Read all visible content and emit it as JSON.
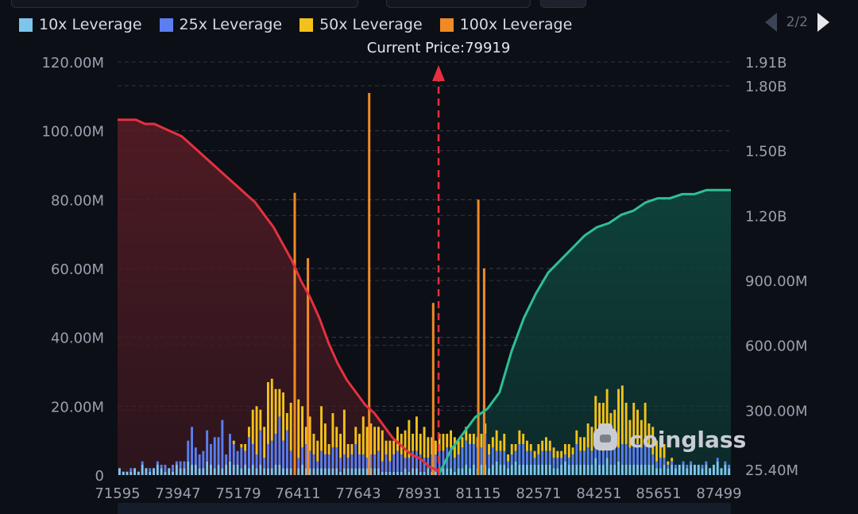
{
  "legend": [
    {
      "label": "10x Leverage",
      "color": "#7cc6ee"
    },
    {
      "label": "25x Leverage",
      "color": "#5b7ef0"
    },
    {
      "label": "50x Leverage",
      "color": "#f2c21a"
    },
    {
      "label": "100x Leverage",
      "color": "#f08a24"
    }
  ],
  "pager": {
    "text": "2/2",
    "prev_icon": "triangle-left-icon",
    "next_icon": "triangle-right-icon"
  },
  "watermark": {
    "text": "coinglass",
    "icon": "coinglass-logo-icon"
  },
  "chart_data": {
    "type": "bar",
    "current_price_label": "Current Price:79919",
    "current_price": 79919,
    "x_tick_labels": [
      "71595",
      "73947",
      "75179",
      "76411",
      "77643",
      "78931",
      "81115",
      "82571",
      "84251",
      "85651",
      "87499"
    ],
    "y_left_ticks": [
      "0",
      "20.00M",
      "40.00M",
      "60.00M",
      "80.00M",
      "100.00M",
      "120.00M"
    ],
    "y_left_range": [
      0,
      120000000
    ],
    "y_right_ticks": [
      "25.40M",
      "300.00M",
      "600.00M",
      "900.00M",
      "1.20B",
      "1.50B",
      "1.80B",
      "1.91B"
    ],
    "y_right_values": [
      25400000,
      300000000,
      600000000,
      900000000,
      1200000000,
      1500000000,
      1800000000,
      1910000000
    ],
    "grid": true,
    "colors": {
      "long_cumulative": "#e5303f",
      "short_cumulative": "#2fbf94",
      "current_price_line": "#e5303f"
    },
    "series": [
      {
        "name": "10x Leverage",
        "color": "#7cc6ee",
        "values": [
          2,
          1,
          1,
          1,
          2,
          1,
          3,
          2,
          1,
          2,
          3,
          2,
          1,
          2,
          1,
          3,
          2,
          2,
          4,
          3,
          3,
          2,
          2,
          4,
          3,
          2,
          3,
          2,
          3,
          4,
          3,
          3,
          2,
          3,
          2,
          3,
          2,
          3,
          2,
          2,
          2,
          3,
          3,
          2,
          2,
          2,
          2,
          2,
          3,
          2,
          2,
          2,
          2,
          2,
          2,
          2,
          2,
          2,
          1,
          2,
          2,
          2,
          2,
          2,
          2,
          2,
          2,
          2,
          2,
          1,
          1,
          1,
          1,
          1,
          1,
          2,
          1,
          2,
          2,
          1,
          1,
          2,
          1,
          1,
          1,
          2,
          2,
          2,
          1,
          2,
          2,
          3,
          2,
          3,
          2,
          3,
          3,
          2,
          3,
          4,
          3,
          3,
          2,
          3,
          4,
          3,
          3,
          3,
          3,
          3,
          3,
          3,
          3,
          3,
          2,
          2,
          3,
          4,
          3,
          3,
          3,
          3,
          3,
          3,
          3,
          5,
          3,
          3,
          5,
          3,
          3,
          4,
          3,
          3,
          3,
          3,
          3,
          3,
          3,
          3,
          3,
          2,
          2,
          3,
          2,
          3,
          2,
          3,
          3,
          2,
          3,
          3,
          3,
          2,
          3,
          2,
          3,
          4,
          2,
          3,
          2
        ]
      },
      {
        "name": "25x Leverage",
        "color": "#5b7ef0",
        "values": [
          0,
          0,
          0,
          1,
          0,
          0,
          1,
          0,
          1,
          0,
          1,
          1,
          2,
          0,
          2,
          1,
          2,
          2,
          6,
          11,
          5,
          4,
          5,
          9,
          6,
          9,
          8,
          14,
          3,
          8,
          6,
          4,
          6,
          4,
          9,
          6,
          4,
          10,
          3,
          7,
          8,
          9,
          14,
          8,
          11,
          5,
          5,
          3,
          5,
          7,
          5,
          4,
          2,
          5,
          4,
          4,
          6,
          6,
          4,
          4,
          3,
          4,
          7,
          4,
          4,
          3,
          4,
          4,
          5,
          3,
          5,
          3,
          5,
          6,
          5,
          3,
          4,
          5,
          5,
          5,
          4,
          3,
          5,
          5,
          6,
          5,
          6,
          6,
          4,
          4,
          6,
          7,
          7,
          6,
          6,
          5,
          9,
          4,
          5,
          3,
          4,
          4,
          2,
          3,
          3,
          6,
          6,
          4,
          4,
          2,
          3,
          4,
          4,
          4,
          3,
          3,
          2,
          2,
          2,
          3,
          6,
          4,
          4,
          5,
          4,
          6,
          5,
          4,
          7,
          7,
          6,
          4,
          6,
          6,
          5,
          6,
          6,
          5,
          6,
          5,
          3,
          2,
          3,
          2,
          1,
          1,
          1,
          0,
          1,
          1,
          1,
          0,
          0,
          1,
          1,
          0,
          0,
          1,
          0,
          1,
          1
        ]
      },
      {
        "name": "50x Leverage",
        "color": "#f2c21a",
        "values": [
          0,
          0,
          0,
          0,
          0,
          0,
          0,
          0,
          0,
          0,
          0,
          0,
          0,
          0,
          0,
          0,
          0,
          0,
          0,
          0,
          0,
          0,
          0,
          0,
          0,
          0,
          0,
          0,
          0,
          0,
          1,
          0,
          1,
          2,
          3,
          10,
          14,
          6,
          9,
          18,
          18,
          13,
          8,
          14,
          5,
          14,
          9,
          17,
          12,
          5,
          10,
          6,
          6,
          13,
          9,
          3,
          10,
          6,
          7,
          13,
          4,
          3,
          5,
          6,
          11,
          9,
          9,
          8,
          7,
          9,
          4,
          6,
          4,
          7,
          6,
          8,
          11,
          5,
          10,
          6,
          9,
          6,
          5,
          4,
          5,
          5,
          4,
          5,
          6,
          4,
          3,
          4,
          3,
          3,
          3,
          4,
          3,
          3,
          3,
          6,
          3,
          5,
          2,
          3,
          2,
          4,
          3,
          3,
          2,
          2,
          3,
          3,
          4,
          3,
          3,
          2,
          2,
          3,
          4,
          2,
          4,
          4,
          4,
          7,
          7,
          12,
          13,
          14,
          13,
          8,
          10,
          17,
          17,
          12,
          8,
          12,
          10,
          8,
          12,
          7,
          8,
          6,
          6,
          4,
          1,
          1,
          0,
          0,
          0,
          0,
          0,
          0,
          0,
          0,
          0,
          0,
          0,
          0,
          0,
          0,
          0
        ]
      },
      {
        "name": "100x Leverage",
        "color": "#f08a24",
        "values": [
          0,
          0,
          0,
          0,
          0,
          0,
          0,
          0,
          0,
          0,
          0,
          0,
          0,
          0,
          0,
          0,
          0,
          0,
          0,
          0,
          0,
          0,
          0,
          0,
          0,
          0,
          0,
          0,
          0,
          0,
          0,
          0,
          0,
          0,
          0,
          0,
          0,
          0,
          0,
          0,
          0,
          0,
          0,
          0,
          0,
          0,
          0,
          0,
          0,
          0,
          0,
          0,
          0,
          0,
          0,
          0,
          0,
          0,
          0,
          0,
          0,
          0,
          0,
          0,
          0,
          0,
          0,
          0,
          0,
          0,
          0,
          0,
          0,
          0,
          0,
          0,
          0,
          0,
          0,
          0,
          0,
          0,
          0,
          0,
          0,
          0,
          0,
          0,
          0,
          0,
          0,
          0,
          0,
          0,
          0,
          0,
          0,
          0,
          0,
          0,
          0,
          0,
          0,
          0,
          0,
          0,
          0,
          0,
          0,
          0,
          0,
          0,
          0,
          0,
          0,
          0,
          0,
          0,
          0,
          0,
          0,
          0,
          0,
          0,
          0,
          0,
          0,
          0,
          0,
          0,
          0,
          0,
          0,
          0,
          0,
          0,
          0,
          0,
          0,
          0,
          0,
          0,
          0,
          0,
          0,
          0,
          0,
          0,
          0,
          0,
          0,
          0,
          0,
          0,
          0,
          0,
          0,
          0,
          0,
          0,
          0
        ]
      },
      {
        "name": "total",
        "values": [
          2,
          1,
          1,
          2,
          2,
          1,
          4,
          2,
          2,
          2,
          4,
          3,
          3,
          2,
          3,
          4,
          4,
          4,
          10,
          14,
          8,
          6,
          7,
          13,
          9,
          11,
          11,
          16,
          6,
          12,
          10,
          7,
          9,
          9,
          14,
          19,
          20,
          19,
          14,
          27,
          28,
          25,
          24,
          24,
          18,
          21,
          16,
          22,
          20,
          14,
          17,
          12,
          10,
          20,
          15,
          9,
          18,
          14,
          12,
          19,
          9,
          9,
          14,
          12,
          17,
          14,
          15,
          14,
          14,
          13,
          10,
          10,
          10,
          14,
          12,
          13,
          16,
          12,
          17,
          12,
          14,
          11,
          11,
          10,
          12,
          12,
          12,
          13,
          11,
          10,
          11,
          14,
          12,
          12,
          11,
          12,
          15,
          9,
          11,
          13,
          10,
          12,
          7,
          9,
          9,
          13,
          12,
          10,
          9,
          7,
          9,
          10,
          11,
          10,
          8,
          7,
          7,
          9,
          9,
          8,
          13,
          11,
          11,
          15,
          14,
          23,
          21,
          21,
          25,
          18,
          19,
          25,
          26,
          21,
          16,
          21,
          19,
          17,
          21,
          15,
          14,
          10,
          11,
          9,
          4,
          5,
          4,
          3,
          4,
          3,
          4,
          3,
          3,
          3,
          4,
          2,
          3,
          5,
          2,
          4,
          3
        ]
      }
    ],
    "tall_bars": [
      {
        "x": 76190,
        "value": 82
      },
      {
        "x": 76530,
        "value": 63
      },
      {
        "x": 78120,
        "value": 111
      },
      {
        "x": 79780,
        "value": 50
      },
      {
        "x": 80950,
        "value": 80
      },
      {
        "x": 81100,
        "value": 60
      }
    ],
    "long_cumulative_pct": [
      0.86,
      0.86,
      0.86,
      0.85,
      0.85,
      0.84,
      0.83,
      0.82,
      0.8,
      0.78,
      0.76,
      0.74,
      0.72,
      0.7,
      0.68,
      0.66,
      0.63,
      0.6,
      0.56,
      0.52,
      0.47,
      0.43,
      0.38,
      0.32,
      0.27,
      0.23,
      0.2,
      0.17,
      0.15,
      0.12,
      0.09,
      0.07,
      0.05,
      0.04,
      0.02,
      0.01
    ],
    "short_cumulative_pct": [
      0.0,
      0.06,
      0.1,
      0.14,
      0.16,
      0.2,
      0.3,
      0.38,
      0.44,
      0.49,
      0.52,
      0.55,
      0.58,
      0.6,
      0.61,
      0.63,
      0.64,
      0.66,
      0.67,
      0.67,
      0.68,
      0.68,
      0.69,
      0.69,
      0.69
    ]
  }
}
